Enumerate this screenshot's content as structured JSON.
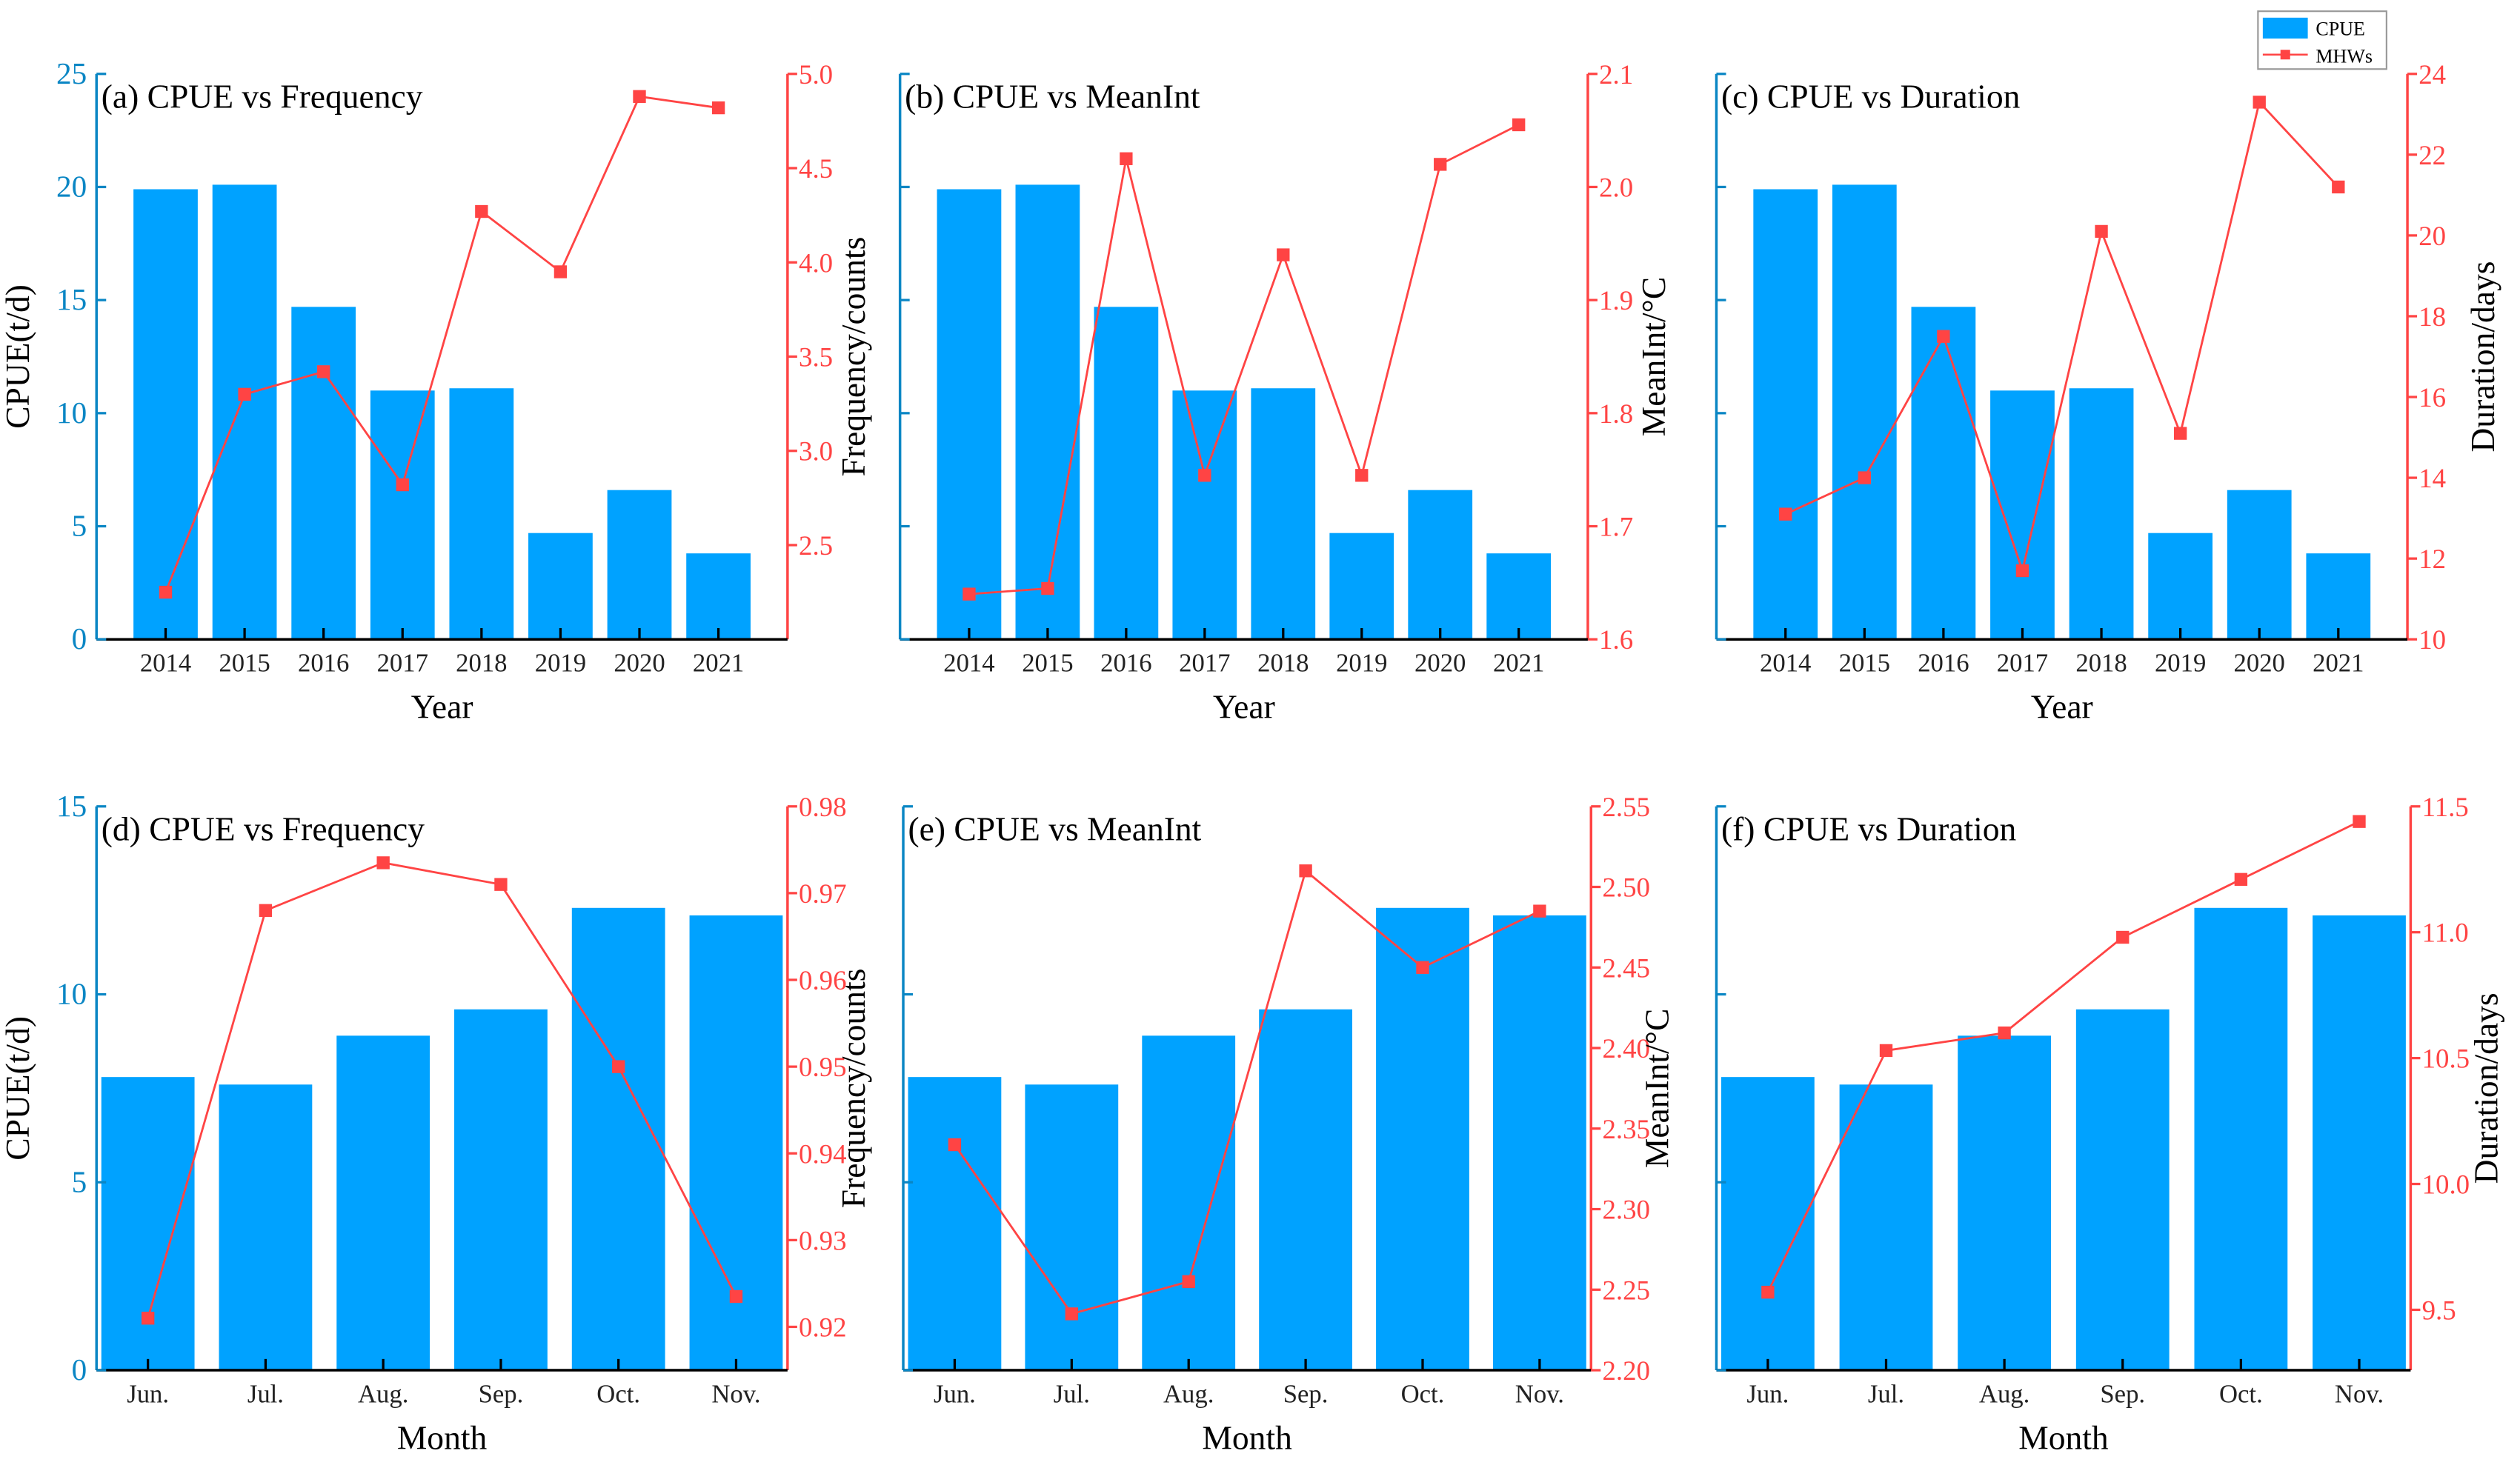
{
  "colors": {
    "bar": "#00a2ff",
    "line": "#ff4444",
    "left_axis": "#0a86c4",
    "right_axis": "#ff4444",
    "text": "#111111"
  },
  "legend": {
    "bar_label": "CPUE",
    "line_label": "MHWs"
  },
  "chart_data": [
    {
      "id": "a",
      "type": "bar+line",
      "title": "(a) CPUE vs Frequency",
      "xlabel": "Year",
      "ylabel": "CPUE(t/d)",
      "y2label": "Frequency/counts",
      "categories": [
        "2014",
        "2015",
        "2016",
        "2017",
        "2018",
        "2019",
        "2020",
        "2021"
      ],
      "series": [
        {
          "name": "CPUE",
          "axis": "left",
          "values": [
            19.9,
            20.1,
            14.7,
            11.0,
            11.1,
            4.7,
            6.6,
            3.8
          ]
        },
        {
          "name": "MHWs",
          "axis": "right",
          "values": [
            2.25,
            3.3,
            3.42,
            2.82,
            4.27,
            3.95,
            4.88,
            4.82
          ]
        }
      ],
      "ylim": [
        0,
        25
      ],
      "yticks": [
        0,
        5,
        10,
        15,
        20,
        25
      ],
      "show_left_labels": true,
      "y2lim": [
        2.0,
        5.0
      ],
      "y2ticks": [
        "2.5",
        "3.0",
        "3.5",
        "4.0",
        "4.5",
        "5.0"
      ]
    },
    {
      "id": "b",
      "type": "bar+line",
      "title": "(b) CPUE vs MeanInt",
      "xlabel": "Year",
      "ylabel": "",
      "y2label": "MeanInt/°C",
      "categories": [
        "2014",
        "2015",
        "2016",
        "2017",
        "2018",
        "2019",
        "2020",
        "2021"
      ],
      "series": [
        {
          "name": "CPUE",
          "axis": "left",
          "values": [
            19.9,
            20.1,
            14.7,
            11.0,
            11.1,
            4.7,
            6.6,
            3.8
          ]
        },
        {
          "name": "MHWs",
          "axis": "right",
          "values": [
            1.64,
            1.645,
            2.025,
            1.745,
            1.94,
            1.745,
            2.02,
            2.055
          ]
        }
      ],
      "ylim": [
        0,
        25
      ],
      "yticks": [
        0,
        5,
        10,
        15,
        20,
        25
      ],
      "show_left_labels": false,
      "y2lim": [
        1.6,
        2.1
      ],
      "y2ticks": [
        "1.6",
        "1.7",
        "1.8",
        "1.9",
        "2.0",
        "2.1"
      ]
    },
    {
      "id": "c",
      "type": "bar+line",
      "title": "(c) CPUE vs Duration",
      "xlabel": "Year",
      "ylabel": "",
      "y2label": "Duration/days",
      "categories": [
        "2014",
        "2015",
        "2016",
        "2017",
        "2018",
        "2019",
        "2020",
        "2021"
      ],
      "series": [
        {
          "name": "CPUE",
          "axis": "left",
          "values": [
            19.9,
            20.1,
            14.7,
            11.0,
            11.1,
            4.7,
            6.6,
            3.8
          ]
        },
        {
          "name": "MHWs",
          "axis": "right",
          "values": [
            13.1,
            14.0,
            17.5,
            11.7,
            20.1,
            15.1,
            23.3,
            21.2
          ]
        }
      ],
      "ylim": [
        0,
        25
      ],
      "yticks": [
        0,
        5,
        10,
        15,
        20,
        25
      ],
      "show_left_labels": false,
      "y2lim": [
        10,
        24
      ],
      "y2ticks": [
        "10",
        "12",
        "14",
        "16",
        "18",
        "20",
        "22",
        "24"
      ],
      "legend": "top-right"
    },
    {
      "id": "d",
      "type": "bar+line",
      "title": "(d) CPUE vs Frequency",
      "xlabel": "Month",
      "ylabel": "CPUE(t/d)",
      "y2label": "Frequency/counts",
      "categories": [
        "Jun.",
        "Jul.",
        "Aug.",
        "Sep.",
        "Oct.",
        "Nov."
      ],
      "series": [
        {
          "name": "CPUE",
          "axis": "left",
          "values": [
            7.8,
            7.6,
            8.9,
            9.6,
            12.3,
            12.1
          ]
        },
        {
          "name": "MHWs",
          "axis": "right",
          "values": [
            0.921,
            0.968,
            0.9735,
            0.971,
            0.95,
            0.9235
          ]
        }
      ],
      "ylim": [
        0,
        15
      ],
      "yticks": [
        0,
        5,
        10,
        15
      ],
      "show_left_labels": true,
      "y2lim": [
        0.915,
        0.98
      ],
      "y2ticks": [
        "0.92",
        "0.93",
        "0.94",
        "0.95",
        "0.96",
        "0.97",
        "0.98"
      ]
    },
    {
      "id": "e",
      "type": "bar+line",
      "title": "(e) CPUE vs MeanInt",
      "xlabel": "Month",
      "ylabel": "",
      "y2label": "MeanInt/°C",
      "categories": [
        "Jun.",
        "Jul.",
        "Aug.",
        "Sep.",
        "Oct.",
        "Nov."
      ],
      "series": [
        {
          "name": "CPUE",
          "axis": "left",
          "values": [
            7.8,
            7.6,
            8.9,
            9.6,
            12.3,
            12.1
          ]
        },
        {
          "name": "MHWs",
          "axis": "right",
          "values": [
            2.34,
            2.235,
            2.255,
            2.51,
            2.45,
            2.485
          ]
        }
      ],
      "ylim": [
        0,
        15
      ],
      "yticks": [
        0,
        5,
        10,
        15
      ],
      "show_left_labels": false,
      "y2lim": [
        2.2,
        2.55
      ],
      "y2ticks": [
        "2.20",
        "2.25",
        "2.30",
        "2.35",
        "2.40",
        "2.45",
        "2.50",
        "2.55"
      ]
    },
    {
      "id": "f",
      "type": "bar+line",
      "title": "(f) CPUE vs Duration",
      "xlabel": "Month",
      "ylabel": "",
      "y2label": "Duration/days",
      "categories": [
        "Jun.",
        "Jul.",
        "Aug.",
        "Sep.",
        "Oct.",
        "Nov."
      ],
      "series": [
        {
          "name": "CPUE",
          "axis": "left",
          "values": [
            7.8,
            7.6,
            8.9,
            9.6,
            12.3,
            12.1
          ]
        },
        {
          "name": "MHWs",
          "axis": "right",
          "values": [
            9.57,
            10.53,
            10.6,
            10.98,
            11.21,
            11.44
          ]
        }
      ],
      "ylim": [
        0,
        15
      ],
      "yticks": [
        0,
        5,
        10,
        15
      ],
      "show_left_labels": false,
      "y2lim": [
        9.26,
        11.5
      ],
      "y2ticks": [
        "9.5",
        "10.0",
        "10.5",
        "11.0",
        "11.5"
      ]
    }
  ]
}
